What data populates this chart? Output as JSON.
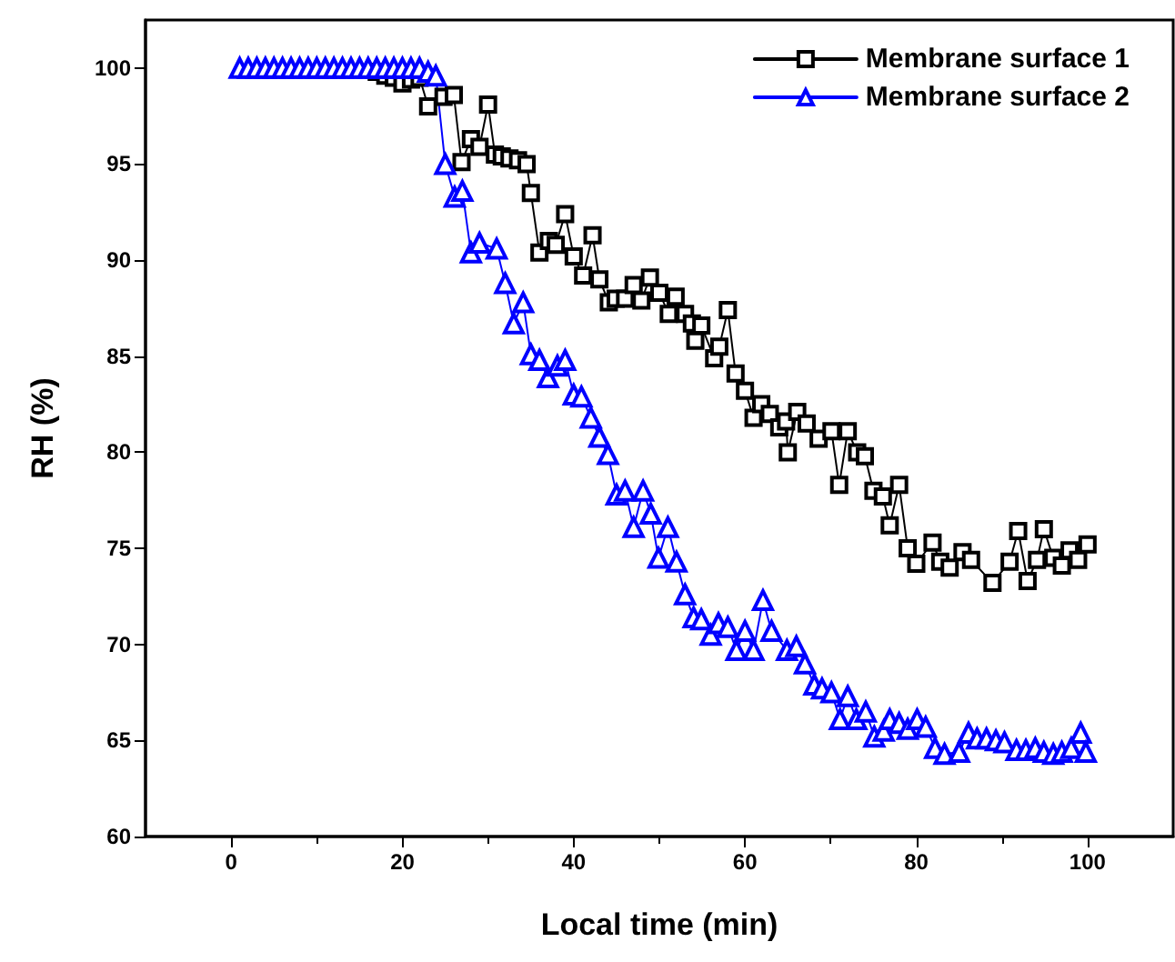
{
  "chart_data": {
    "type": "line",
    "xlabel": "Local time (min)",
    "ylabel": "RH (%)",
    "xlim": [
      -10,
      110
    ],
    "xticks": [
      0,
      20,
      40,
      60,
      80,
      100
    ],
    "ylim": [
      60,
      102.5
    ],
    "yticks": [
      60,
      65,
      70,
      75,
      80,
      85,
      90,
      95,
      100
    ],
    "grid": false,
    "legend": "top right",
    "line_style": "solid",
    "series": [
      {
        "name": "Membrane surface 1",
        "color": "#000000",
        "marker": "square",
        "x": [
          17,
          18,
          19,
          20,
          21,
          22,
          23,
          24.8,
          26,
          26.9,
          28,
          29,
          30,
          30.8,
          31.6,
          32.5,
          33.5,
          34.5,
          35,
          36,
          37.1,
          37.9,
          39,
          40,
          41.1,
          42.2,
          43,
          44.1,
          44.9,
          46,
          47,
          47.9,
          48.9,
          50,
          51.1,
          51.9,
          53,
          53.8,
          54.2,
          54.9,
          56.4,
          57,
          58,
          58.9,
          60,
          61,
          61.9,
          62.9,
          64,
          64.8,
          65,
          66.1,
          67.2,
          68.6,
          70.1,
          71,
          72,
          73.1,
          74,
          75,
          76.1,
          76.9,
          78,
          79,
          80,
          81.9,
          82.8,
          83.9,
          85.4,
          86.4,
          88.9,
          90.9,
          91.9,
          93,
          94.1,
          94.9,
          96,
          97,
          97.9,
          98.9,
          100
        ],
        "values": [
          99.8,
          99.6,
          99.5,
          99.2,
          99.4,
          99.5,
          98,
          98.5,
          98.6,
          95.1,
          96.3,
          95.9,
          98.1,
          95.5,
          95.4,
          95.3,
          95.2,
          95,
          93.5,
          90.4,
          91,
          90.8,
          92.4,
          90.2,
          89.2,
          91.3,
          89,
          87.8,
          88,
          88,
          88.7,
          87.9,
          89.1,
          88.3,
          87.2,
          88.1,
          87.2,
          86.7,
          85.8,
          86.6,
          84.9,
          85.5,
          87.4,
          84.1,
          83.2,
          81.8,
          82.5,
          82,
          81.3,
          81.6,
          80,
          82.1,
          81.5,
          80.7,
          81.1,
          78.3,
          81.1,
          80,
          79.8,
          78,
          77.7,
          76.2,
          78.3,
          75,
          74.2,
          75.3,
          74.3,
          74,
          74.8,
          74.4,
          73.2,
          74.3,
          75.9,
          73.3,
          74.4,
          76,
          74.5,
          74.1,
          74.9,
          74.4,
          75.2
        ]
      },
      {
        "name": "Membrane surface 2",
        "color": "#0000ff",
        "marker": "triangle",
        "x": [
          1,
          2,
          3,
          4,
          5,
          6,
          7,
          8,
          9,
          10,
          11,
          12,
          13,
          14,
          15,
          16,
          17,
          18,
          19,
          20,
          21,
          22,
          23,
          23.9,
          25,
          26.1,
          27,
          28,
          29,
          31,
          32,
          33,
          34.1,
          35,
          36,
          37,
          38.1,
          39,
          40,
          40.9,
          42,
          43,
          44,
          45,
          46,
          47,
          48.1,
          49,
          49.9,
          51,
          52,
          53,
          54,
          54.9,
          56,
          56.9,
          58,
          59,
          60,
          61,
          62.1,
          63.1,
          64.9,
          66,
          67,
          68.1,
          69,
          70.1,
          71.1,
          72,
          73,
          74.1,
          75.1,
          76.2,
          76.9,
          78,
          79,
          80.1,
          81.1,
          82.2,
          83.3,
          85,
          86.1,
          87.1,
          88.2,
          89.3,
          90.3,
          91.7,
          92.8,
          93.9,
          94.9,
          96,
          97,
          98.1,
          99.2,
          99.8
        ],
        "values": [
          100,
          100,
          100,
          100,
          100,
          100,
          100,
          100,
          100,
          100,
          100,
          100,
          100,
          100,
          100,
          100,
          100,
          100,
          100,
          100,
          100,
          100,
          99.8,
          99.6,
          95,
          93.3,
          93.6,
          90.4,
          90.9,
          90.6,
          88.8,
          86.7,
          87.8,
          85.1,
          84.8,
          83.9,
          84.5,
          84.8,
          83,
          82.9,
          81.8,
          80.8,
          79.9,
          77.8,
          78,
          76.1,
          78,
          76.8,
          74.5,
          76.1,
          74.3,
          72.6,
          71.4,
          71.3,
          70.5,
          71.1,
          70.9,
          69.7,
          70.7,
          69.7,
          72.3,
          70.7,
          69.7,
          69.9,
          69,
          67.9,
          67.7,
          67.5,
          66.1,
          67.3,
          66.1,
          66.5,
          65.2,
          65.5,
          66.1,
          65.9,
          65.6,
          66.1,
          65.7,
          64.6,
          64.3,
          64.4,
          65.4,
          65.1,
          65.1,
          65,
          64.9,
          64.5,
          64.5,
          64.6,
          64.4,
          64.3,
          64.4,
          64.6,
          65.4,
          64.4
        ]
      }
    ]
  }
}
